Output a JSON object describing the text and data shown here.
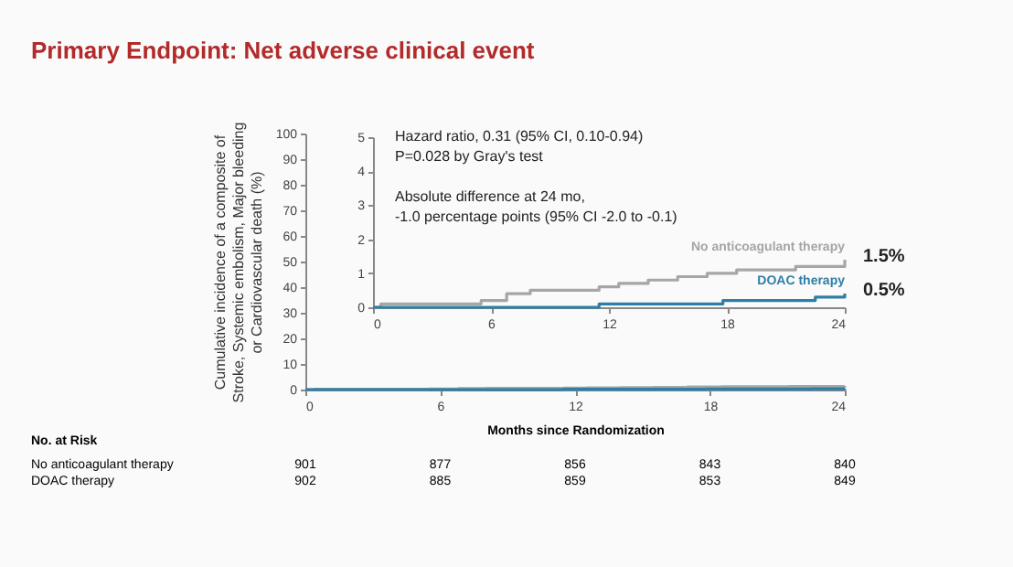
{
  "chart_data": [
    {
      "type": "step",
      "title": "Primary Endpoint: Net adverse clinical event",
      "xlabel": "Months since Randomization",
      "ylabel": "Cumulative incidence of a composite of Stroke, Systemic embolism, Major bleeding or Cardiovascular death (%)",
      "xlim": [
        0,
        24
      ],
      "xticks": [
        0,
        6,
        12,
        18,
        24
      ],
      "ylim": [
        0,
        100
      ],
      "yticks": [
        0,
        10,
        20,
        30,
        40,
        50,
        60,
        70,
        80,
        90,
        100
      ],
      "grid": false,
      "legend": false,
      "series": [
        {
          "color": "#a6a6a6",
          "x": [
            0,
            0.4,
            5.5,
            6.8,
            8,
            11.5,
            12.5,
            14,
            15.5,
            17,
            18.5,
            21.5,
            24
          ],
          "values": [
            0,
            0.1,
            0.2,
            0.4,
            0.5,
            0.6,
            0.7,
            0.8,
            0.9,
            1.0,
            1.1,
            1.2,
            1.4
          ]
        },
        {
          "color": "#2e7fa6",
          "x": [
            0,
            11.5,
            17.8,
            22.5,
            24
          ],
          "values": [
            0,
            0.1,
            0.2,
            0.3,
            0.4
          ]
        }
      ],
      "annotations": [
        "No. at Risk",
        "No anticoagulant therapy",
        "901",
        "877",
        "856",
        "843",
        "840",
        "DOAC therapy",
        "902",
        "885",
        "859",
        "853",
        "849"
      ]
    },
    {
      "type": "step",
      "xlim": [
        0,
        24
      ],
      "xticks": [
        0,
        6,
        12,
        18,
        24
      ],
      "ylim": [
        0,
        5
      ],
      "yticks": [
        0,
        1,
        2,
        3,
        4,
        5
      ],
      "grid": false,
      "legend": false,
      "series": [
        {
          "name": "No anticoagulant therapy",
          "color": "#a6a6a6",
          "x": [
            0,
            0.4,
            5.5,
            6.8,
            8,
            11.5,
            12.5,
            14,
            15.5,
            17,
            18.5,
            21.5,
            24
          ],
          "values": [
            0,
            0.1,
            0.2,
            0.4,
            0.5,
            0.6,
            0.7,
            0.8,
            0.9,
            1.0,
            1.1,
            1.2,
            1.4
          ]
        },
        {
          "name": "DOAC therapy",
          "color": "#2e7fa6",
          "x": [
            0,
            11.5,
            17.8,
            22.5,
            24
          ],
          "values": [
            0,
            0.1,
            0.2,
            0.3,
            0.4
          ]
        }
      ],
      "annotations": [
        "Hazard ratio, 0.31 (95% CI, 0.10-0.94)",
        "P=0.028 by Gray's test",
        "Absolute difference at 24 mo,",
        "-1.0 percentage points (95% CI -2.0 to -0.1)",
        {
          "text": "1.5%",
          "x": 24,
          "y": 1.5
        },
        {
          "text": "0.5%",
          "x": 24,
          "y": 0.5
        }
      ]
    }
  ]
}
